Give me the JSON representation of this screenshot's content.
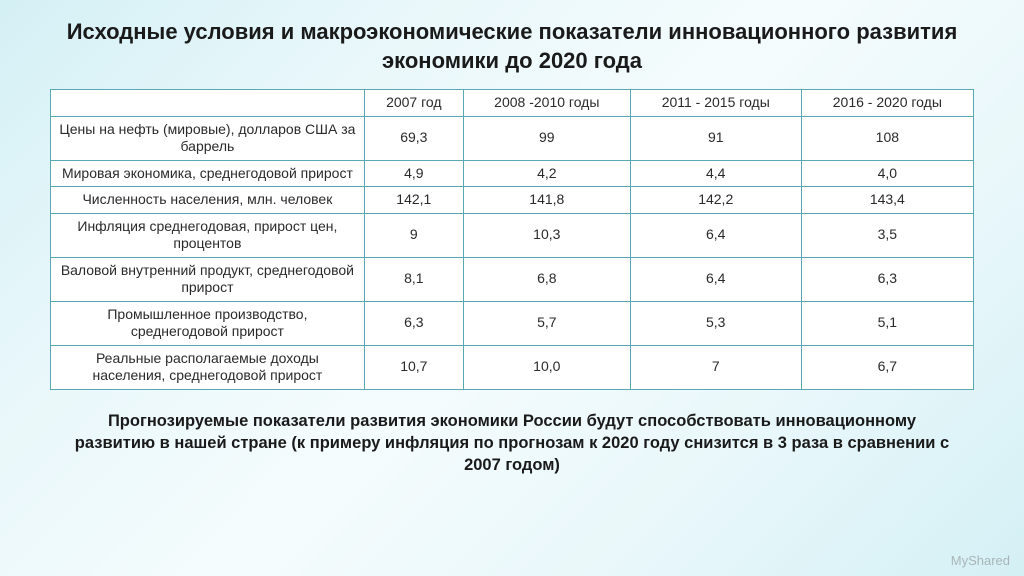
{
  "title": "Исходные условия и макроэкономические показатели инновационного развития экономики до 2020 года",
  "table": {
    "columns": [
      "",
      "2007 год",
      "2008 -2010 годы",
      "2011 - 2015 годы",
      "2016 - 2020 годы"
    ],
    "rows": [
      [
        "Цены на нефть (мировые), долларов США за баррель",
        "69,3",
        "99",
        "91",
        "108"
      ],
      [
        "Мировая экономика, среднегодовой прирост",
        "4,9",
        "4,2",
        "4,4",
        "4,0"
      ],
      [
        "Численность населения, млн. человек",
        "142,1",
        "141,8",
        "142,2",
        "143,4"
      ],
      [
        "Инфляция среднегодовая, прирост цен, процентов",
        "9",
        "10,3",
        "6,4",
        "3,5"
      ],
      [
        "Валовой внутренний продукт, среднегодовой прирост",
        "8,1",
        "6,8",
        "6,4",
        "6,3"
      ],
      [
        "Промышленное производство, среднегодовой прирост",
        "6,3",
        "5,7",
        "5,3",
        "5,1"
      ],
      [
        "Реальные располагаемые доходы населения, среднегодовой прирост",
        "10,7",
        "10,0",
        "7",
        "6,7"
      ]
    ],
    "border_color": "#5aa8b5",
    "background_color": "#ffffff",
    "font_size": 14
  },
  "footnote": "Прогнозируемые показатели развития экономики России будут способствовать инновационному развитию в нашей стране (к примеру инфляция по прогнозам к 2020 году снизится в 3 раза в сравнении с 2007 годом)",
  "watermark": "MyShared"
}
